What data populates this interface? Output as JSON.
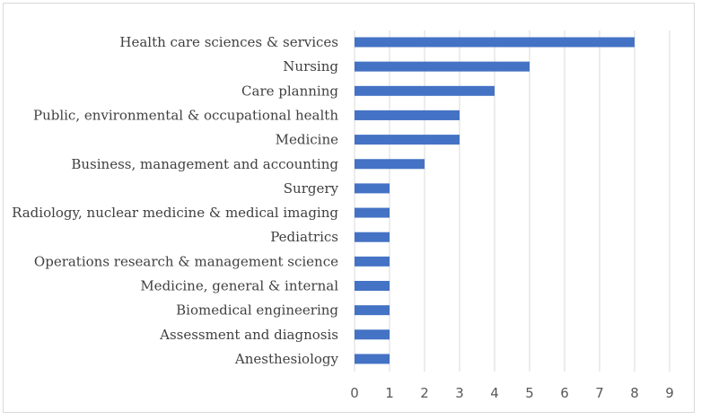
{
  "chart_data": {
    "type": "bar",
    "orientation": "horizontal",
    "title": "",
    "xlabel": "",
    "ylabel": "",
    "xlim": [
      0,
      9
    ],
    "ticks": [
      "0",
      "1",
      "2",
      "3",
      "4",
      "5",
      "6",
      "7",
      "8",
      "9"
    ],
    "grid": true,
    "legend": "none",
    "bar_color": "#4472c4",
    "categories": [
      "Health care sciences & services",
      "Nursing",
      "Care planning",
      "Public, environmental & occupational health",
      "Medicine",
      "Business, management and accounting",
      "Surgery",
      "Radiology, nuclear medicine & medical imaging",
      "Pediatrics",
      "Operations research & management science",
      "Medicine, general & internal",
      "Biomedical engineering",
      "Assessment and diagnosis",
      "Anesthesiology"
    ],
    "values": [
      8,
      5,
      4,
      3,
      3,
      2,
      1,
      1,
      1,
      1,
      1,
      1,
      1,
      1
    ]
  }
}
